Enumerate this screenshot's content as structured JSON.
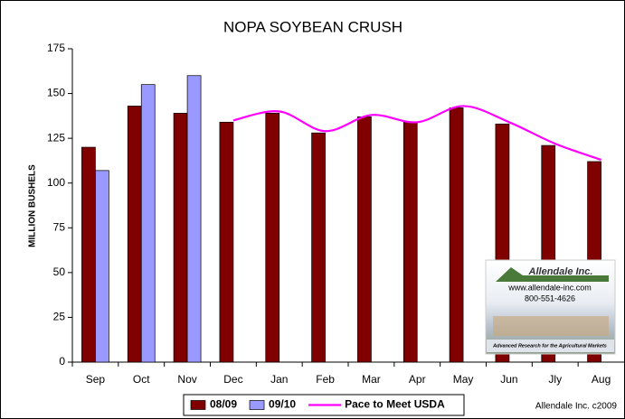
{
  "chart_data": {
    "type": "bar",
    "title": "NOPA SOYBEAN CRUSH",
    "y_label": "MILLION BUSHELS",
    "categories": [
      "Sep",
      "Oct",
      "Nov",
      "Dec",
      "Jan",
      "Feb",
      "Mar",
      "Apr",
      "May",
      "Jun",
      "Jly",
      "Aug"
    ],
    "series": [
      {
        "name": "08/09",
        "color": "#800000",
        "values": [
          120,
          143,
          139,
          134,
          139,
          128,
          137,
          134,
          142,
          133,
          121,
          112
        ]
      },
      {
        "name": "09/10",
        "color": "#9999ff",
        "values": [
          107,
          155,
          160,
          null,
          null,
          null,
          null,
          null,
          null,
          null,
          null,
          null
        ]
      },
      {
        "name": "Pace to Meet USDA",
        "color": "#ff00ff",
        "type": "line",
        "values": [
          null,
          null,
          null,
          135,
          140,
          129,
          138,
          134,
          143,
          134,
          122,
          113
        ]
      }
    ],
    "ylim": [
      0,
      175
    ],
    "yticks": [
      0,
      25,
      50,
      75,
      100,
      125,
      150,
      175
    ],
    "grid": false,
    "legend": "bottom",
    "credit": "Allendale Inc. c2009"
  },
  "logo": {
    "name": "Allendale Inc.",
    "url": "www.allendale-inc.com",
    "phone": "800-551-4626",
    "tagline": "Advanced Research for the Agricultural Markets"
  }
}
